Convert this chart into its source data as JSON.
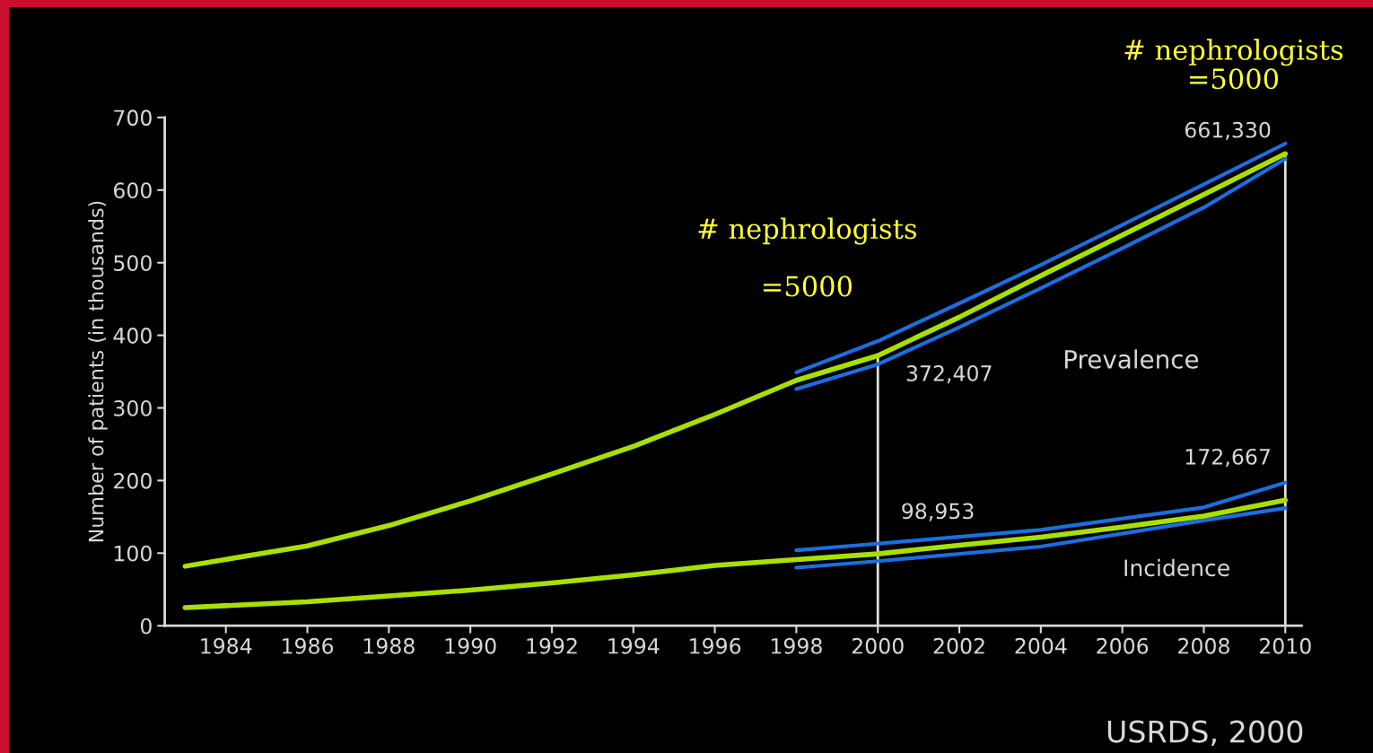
{
  "chart_data": {
    "type": "line",
    "ylabel": "Number of patients (in thousands)",
    "xlim": [
      1982.5,
      2010.4
    ],
    "ylim": [
      0,
      700
    ],
    "xticks": [
      1984,
      1986,
      1988,
      1990,
      1992,
      1994,
      1996,
      1998,
      2000,
      2002,
      2004,
      2006,
      2008,
      2010
    ],
    "yticks": [
      0,
      100,
      200,
      300,
      400,
      500,
      600,
      700
    ],
    "grid": false,
    "marker": "none",
    "line_style": "solid",
    "series": [
      {
        "color": "#a8e000",
        "x": [
          1983,
          1986,
          1988,
          1990,
          1992,
          1994,
          1996,
          1998,
          2000,
          2002,
          2004,
          2006,
          2008,
          2010
        ],
        "values": [
          82,
          110,
          138,
          172,
          209,
          247,
          291,
          338,
          372,
          425,
          482,
          538,
          594,
          650
        ]
      },
      {
        "color": "#a8e000",
        "x": [
          1983,
          1986,
          1988,
          1990,
          1992,
          1994,
          1996,
          1998,
          2000,
          2002,
          2004,
          2006,
          2008,
          2010
        ],
        "values": [
          25,
          33,
          41,
          49,
          59,
          70,
          83,
          91,
          99,
          111,
          122,
          136,
          151,
          173
        ]
      },
      {
        "color": "#1a6fe0",
        "x": [
          1998,
          2000,
          2002,
          2004,
          2006,
          2008,
          2010
        ],
        "values": [
          349,
          392,
          444,
          497,
          552,
          608,
          664
        ]
      },
      {
        "color": "#1a6fe0",
        "x": [
          1998,
          2000,
          2002,
          2004,
          2006,
          2008,
          2010
        ],
        "values": [
          326,
          360,
          411,
          465,
          520,
          576,
          643
        ]
      },
      {
        "color": "#1a6fe0",
        "x": [
          1998,
          2000,
          2004,
          2008,
          2010
        ],
        "values": [
          104,
          113,
          132,
          163,
          197
        ]
      },
      {
        "color": "#1a6fe0",
        "x": [
          1998,
          2000,
          2004,
          2008,
          2010
        ],
        "values": [
          80,
          89,
          109,
          145,
          162
        ]
      }
    ],
    "ref_lines": [
      {
        "axis": "x",
        "value": 2000,
        "color": "#e0e0e0"
      },
      {
        "axis": "x",
        "value": 2010,
        "color": "#e0e0e0"
      }
    ],
    "annotations": [
      "372,407",
      "661,330",
      "98,953",
      "172,667",
      "Prevalence",
      "Incidence",
      "# nephrologists\n\n=5000",
      "# nephrologists\n=5000",
      "USRDS, 2000"
    ]
  }
}
